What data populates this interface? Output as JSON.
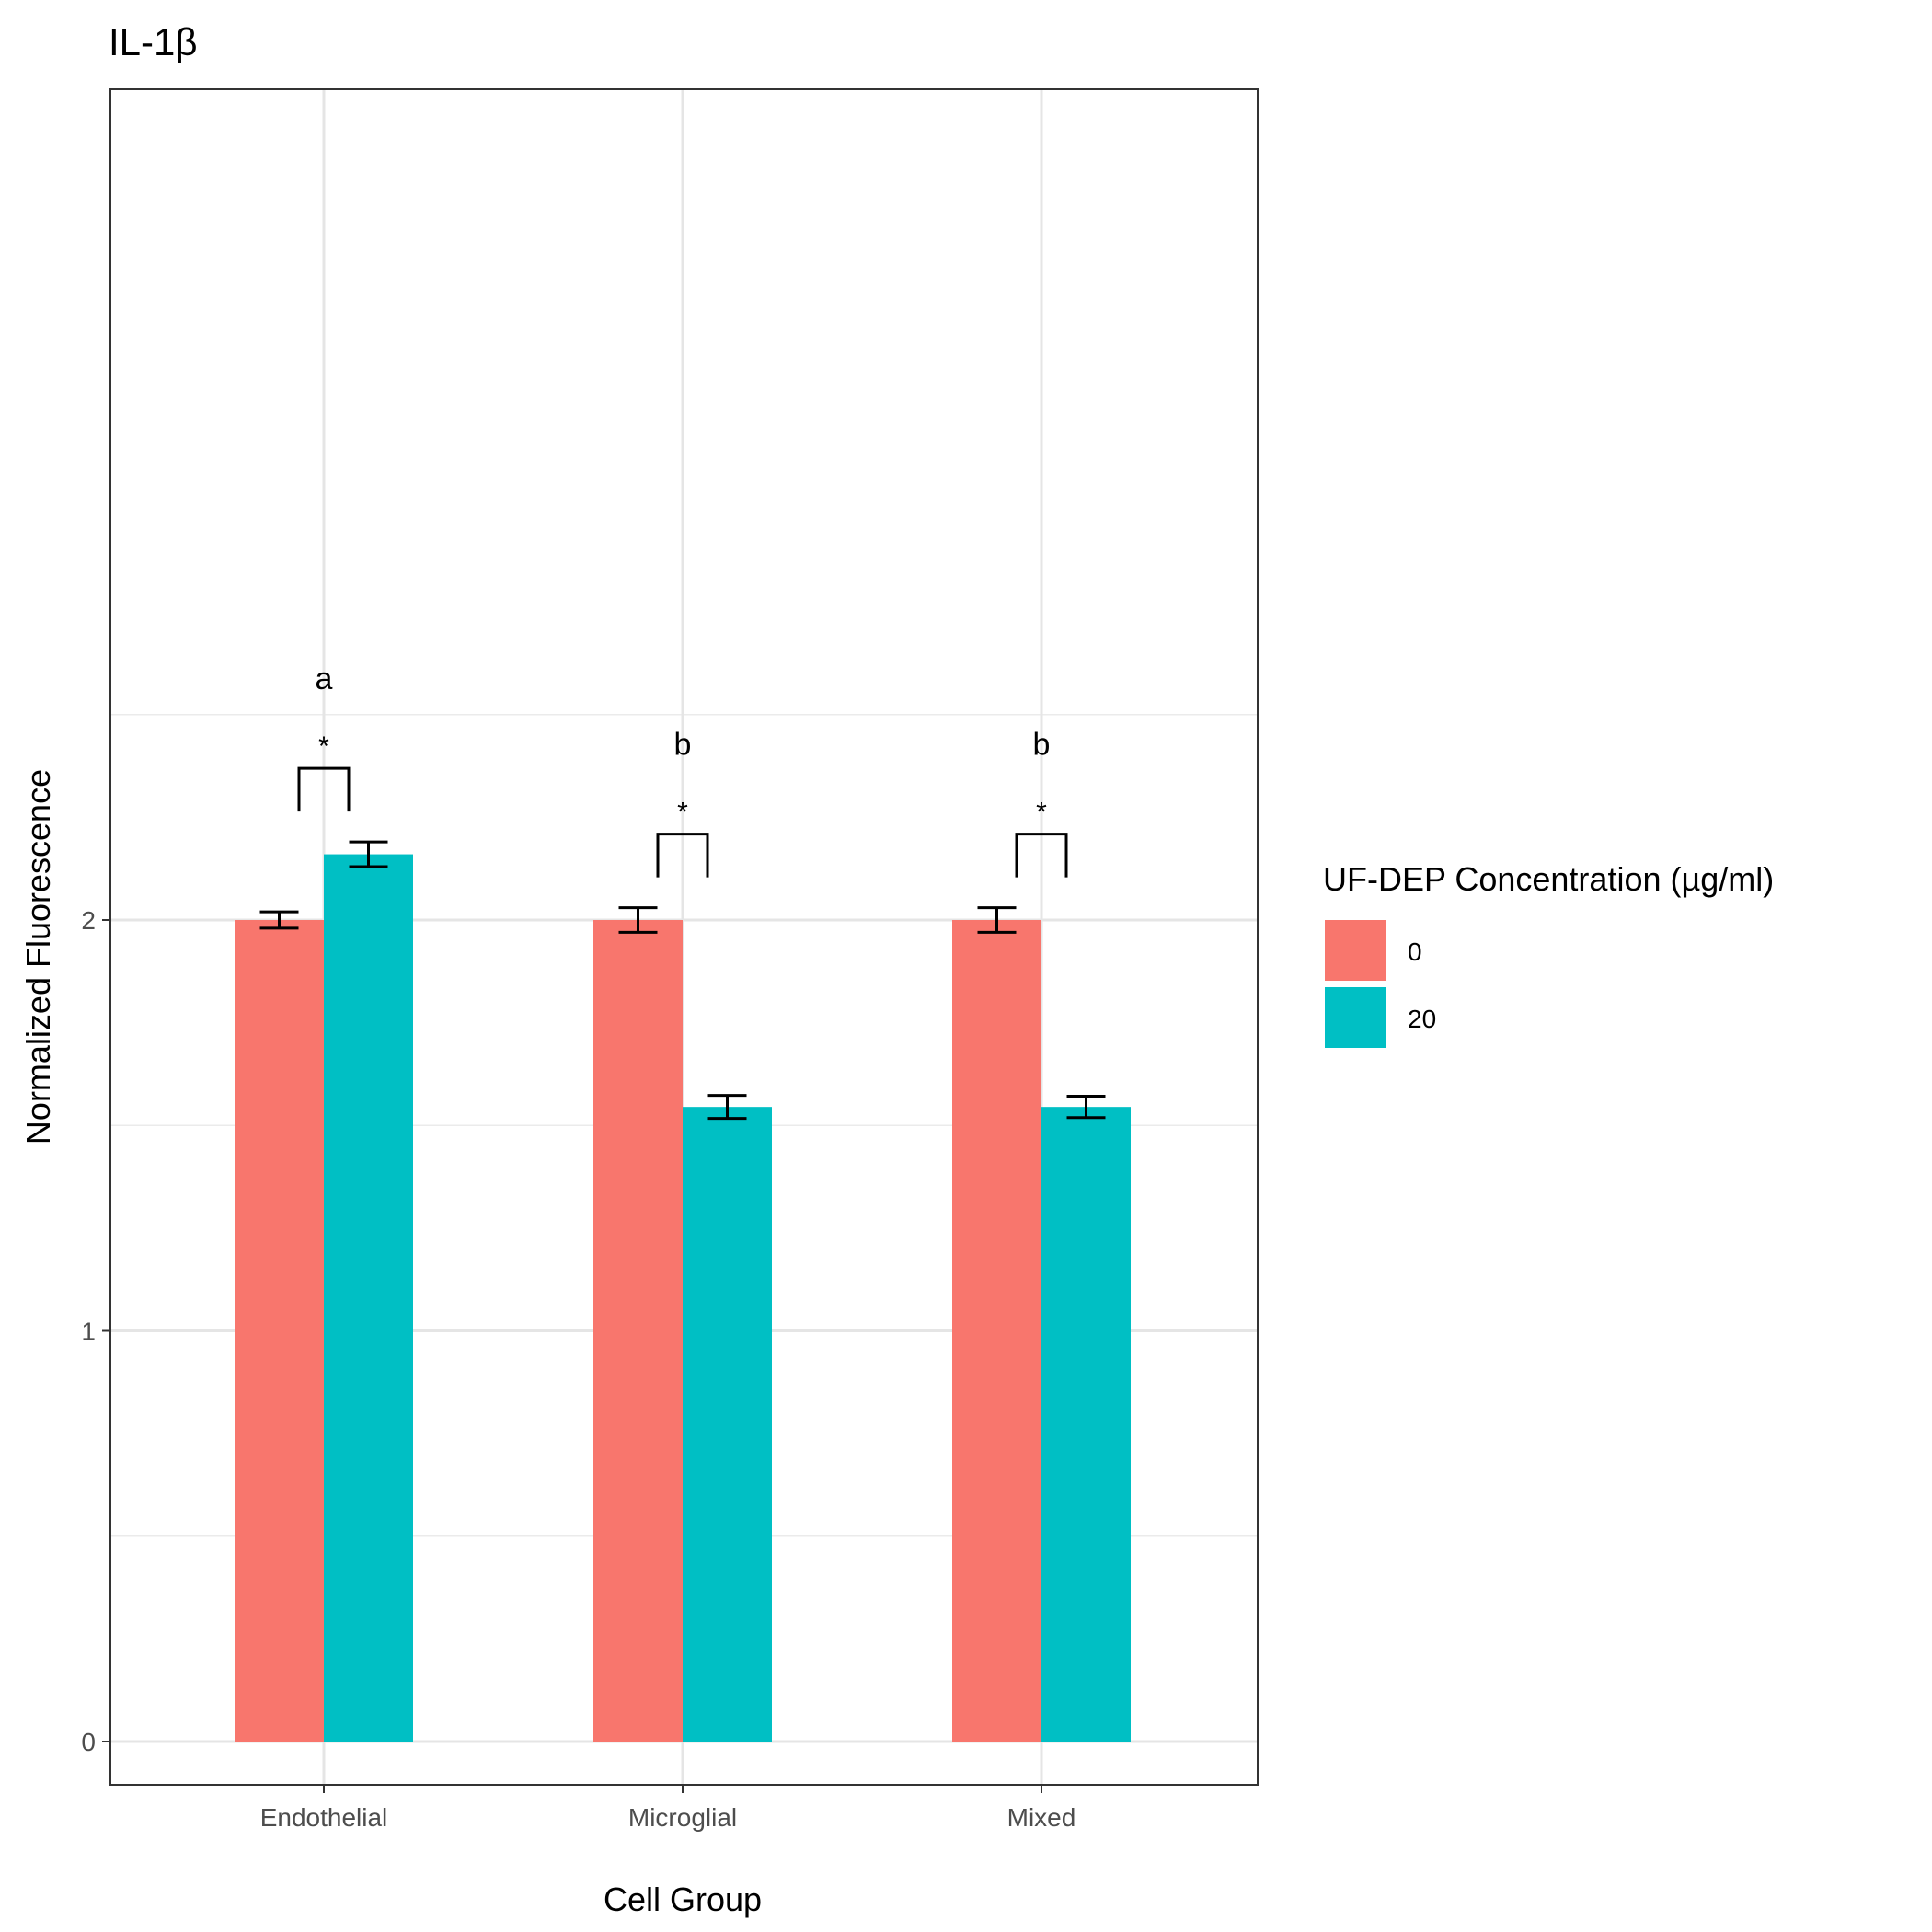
{
  "chart_data": {
    "type": "bar",
    "title": "IL-1β",
    "xlabel": "Cell Group",
    "ylabel": "Normalized Fluorescence",
    "categories": [
      "Endothelial",
      "Microglial",
      "Mixed"
    ],
    "yticks": [
      0,
      1,
      2
    ],
    "ylim": [
      -0.12,
      2.58
    ],
    "grid": true,
    "legend": {
      "title": "UF-DEP Concentration (µg/ml)",
      "position": "right"
    },
    "series": [
      {
        "name": "0",
        "color": "#F8766D",
        "values": [
          2.0,
          2.0,
          2.0
        ],
        "errors": [
          0.02,
          0.03,
          0.03
        ]
      },
      {
        "name": "20",
        "color": "#00BFC4",
        "values": [
          2.16,
          1.545,
          1.545
        ],
        "errors": [
          0.03,
          0.028,
          0.026
        ]
      }
    ],
    "annotations": [
      {
        "category": "Endothelial",
        "letter": "a",
        "star": "*"
      },
      {
        "category": "Microglial",
        "letter": "b",
        "star": "*"
      },
      {
        "category": "Mixed",
        "letter": "b",
        "star": "*"
      }
    ]
  }
}
